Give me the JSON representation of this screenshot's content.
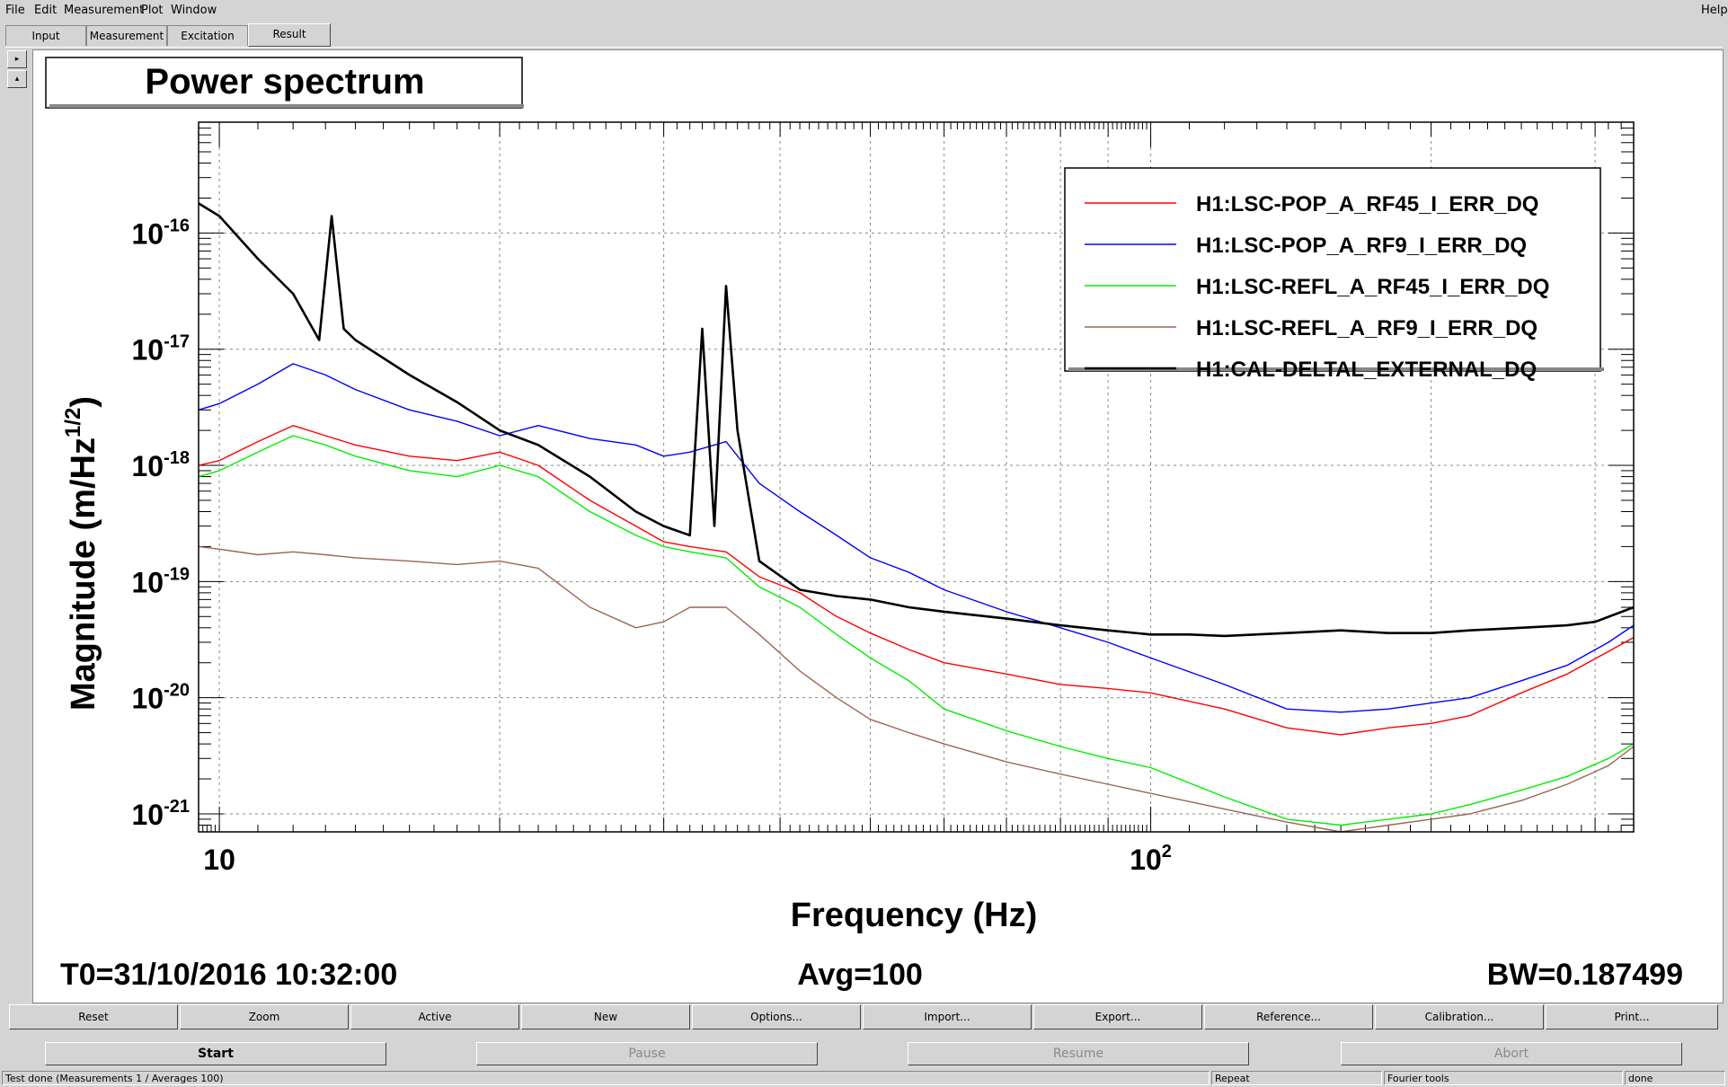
{
  "menubar": {
    "items": [
      {
        "label": "File"
      },
      {
        "label": "Edit"
      },
      {
        "label": "Measurement"
      },
      {
        "label": "Plot"
      },
      {
        "label": "Window"
      }
    ],
    "help": "Help"
  },
  "tabs": [
    {
      "label": "Input"
    },
    {
      "label": "Measurement"
    },
    {
      "label": "Excitation"
    },
    {
      "label": "Result",
      "active": true
    }
  ],
  "plot": {
    "title": "Power spectrum",
    "info_left": "T0=31/10/2016 10:32:00",
    "info_center": "Avg=100",
    "info_right": "BW=0.187499"
  },
  "chart_data": {
    "type": "line",
    "title": "Power spectrum",
    "xlabel": "Frequency (Hz)",
    "ylabel": "Magnitude (m/Hz^(1/2))",
    "xscale": "log",
    "yscale": "log",
    "xlim": [
      9.5,
      330
    ],
    "ylim": [
      7e-22,
      9e-16
    ],
    "x_ticks": [
      "10",
      "10^2"
    ],
    "y_ticks": [
      "10^-16",
      "10^-17",
      "10^-18",
      "10^-19",
      "10^-20",
      "10^-21"
    ],
    "grid": true,
    "legend_position": "top-right",
    "series": [
      {
        "name": "H1:LSC-POP_A_RF45_I_ERR_DQ",
        "color": "#ff0000",
        "points": [
          [
            9.5,
            1e-18
          ],
          [
            10,
            1.1e-18
          ],
          [
            11,
            1.6e-18
          ],
          [
            12,
            2.2e-18
          ],
          [
            13,
            1.8e-18
          ],
          [
            14,
            1.5e-18
          ],
          [
            16,
            1.2e-18
          ],
          [
            18,
            1.1e-18
          ],
          [
            20,
            1.3e-18
          ],
          [
            22,
            1e-18
          ],
          [
            25,
            5e-19
          ],
          [
            28,
            3e-19
          ],
          [
            30,
            2.2e-19
          ],
          [
            32,
            2e-19
          ],
          [
            35,
            1.8e-19
          ],
          [
            38,
            1.1e-19
          ],
          [
            42,
            8e-20
          ],
          [
            46,
            5e-20
          ],
          [
            50,
            3.6e-20
          ],
          [
            55,
            2.6e-20
          ],
          [
            60,
            2e-20
          ],
          [
            70,
            1.6e-20
          ],
          [
            80,
            1.3e-20
          ],
          [
            90,
            1.2e-20
          ],
          [
            100,
            1.1e-20
          ],
          [
            120,
            8e-21
          ],
          [
            140,
            5.5e-21
          ],
          [
            160,
            4.8e-21
          ],
          [
            180,
            5.5e-21
          ],
          [
            200,
            6e-21
          ],
          [
            220,
            7e-21
          ],
          [
            250,
            1.1e-20
          ],
          [
            280,
            1.6e-20
          ],
          [
            310,
            2.5e-20
          ],
          [
            330,
            3.3e-20
          ]
        ]
      },
      {
        "name": "H1:LSC-POP_A_RF9_I_ERR_DQ",
        "color": "#0000ff",
        "points": [
          [
            9.5,
            3e-18
          ],
          [
            10,
            3.4e-18
          ],
          [
            11,
            5e-18
          ],
          [
            12,
            7.5e-18
          ],
          [
            13,
            6e-18
          ],
          [
            14,
            4.5e-18
          ],
          [
            16,
            3e-18
          ],
          [
            18,
            2.4e-18
          ],
          [
            20,
            1.8e-18
          ],
          [
            22,
            2.2e-18
          ],
          [
            25,
            1.7e-18
          ],
          [
            28,
            1.5e-18
          ],
          [
            30,
            1.2e-18
          ],
          [
            32,
            1.3e-18
          ],
          [
            35,
            1.6e-18
          ],
          [
            38,
            7e-19
          ],
          [
            42,
            4e-19
          ],
          [
            46,
            2.5e-19
          ],
          [
            50,
            1.6e-19
          ],
          [
            55,
            1.2e-19
          ],
          [
            60,
            8.5e-20
          ],
          [
            70,
            5.5e-20
          ],
          [
            80,
            4e-20
          ],
          [
            90,
            3e-20
          ],
          [
            100,
            2.2e-20
          ],
          [
            120,
            1.3e-20
          ],
          [
            140,
            8e-21
          ],
          [
            160,
            7.5e-21
          ],
          [
            180,
            8e-21
          ],
          [
            200,
            9e-21
          ],
          [
            220,
            1e-20
          ],
          [
            250,
            1.4e-20
          ],
          [
            280,
            1.9e-20
          ],
          [
            310,
            3e-20
          ],
          [
            330,
            4.2e-20
          ]
        ]
      },
      {
        "name": "H1:LSC-REFL_A_RF45_I_ERR_DQ",
        "color": "#00ee00",
        "points": [
          [
            9.5,
            8e-19
          ],
          [
            10,
            9e-19
          ],
          [
            11,
            1.3e-18
          ],
          [
            12,
            1.8e-18
          ],
          [
            13,
            1.5e-18
          ],
          [
            14,
            1.2e-18
          ],
          [
            16,
            9e-19
          ],
          [
            18,
            8e-19
          ],
          [
            20,
            1e-18
          ],
          [
            22,
            8e-19
          ],
          [
            25,
            4e-19
          ],
          [
            28,
            2.5e-19
          ],
          [
            30,
            2e-19
          ],
          [
            32,
            1.8e-19
          ],
          [
            35,
            1.6e-19
          ],
          [
            38,
            9e-20
          ],
          [
            42,
            6e-20
          ],
          [
            46,
            3.5e-20
          ],
          [
            50,
            2.2e-20
          ],
          [
            55,
            1.4e-20
          ],
          [
            60,
            8e-21
          ],
          [
            70,
            5.2e-21
          ],
          [
            80,
            3.8e-21
          ],
          [
            90,
            3e-21
          ],
          [
            100,
            2.5e-21
          ],
          [
            120,
            1.4e-21
          ],
          [
            140,
            9e-22
          ],
          [
            160,
            8e-22
          ],
          [
            180,
            9e-22
          ],
          [
            200,
            1e-21
          ],
          [
            220,
            1.2e-21
          ],
          [
            250,
            1.6e-21
          ],
          [
            280,
            2.1e-21
          ],
          [
            310,
            3e-21
          ],
          [
            330,
            4e-21
          ]
        ]
      },
      {
        "name": "H1:LSC-REFL_A_RF9_I_ERR_DQ",
        "color": "#996655",
        "points": [
          [
            9.5,
            2e-19
          ],
          [
            10,
            1.9e-19
          ],
          [
            11,
            1.7e-19
          ],
          [
            12,
            1.8e-19
          ],
          [
            13,
            1.7e-19
          ],
          [
            14,
            1.6e-19
          ],
          [
            16,
            1.5e-19
          ],
          [
            18,
            1.4e-19
          ],
          [
            20,
            1.5e-19
          ],
          [
            22,
            1.3e-19
          ],
          [
            25,
            6e-20
          ],
          [
            28,
            4e-20
          ],
          [
            30,
            4.5e-20
          ],
          [
            32,
            6e-20
          ],
          [
            35,
            6e-20
          ],
          [
            38,
            3.5e-20
          ],
          [
            42,
            1.7e-20
          ],
          [
            46,
            1e-20
          ],
          [
            50,
            6.5e-21
          ],
          [
            55,
            5e-21
          ],
          [
            60,
            4e-21
          ],
          [
            70,
            2.8e-21
          ],
          [
            80,
            2.2e-21
          ],
          [
            90,
            1.8e-21
          ],
          [
            100,
            1.5e-21
          ],
          [
            120,
            1.1e-21
          ],
          [
            140,
            8.5e-22
          ],
          [
            160,
            7e-22
          ],
          [
            180,
            8e-22
          ],
          [
            200,
            9e-22
          ],
          [
            220,
            1e-21
          ],
          [
            250,
            1.3e-21
          ],
          [
            280,
            1.8e-21
          ],
          [
            310,
            2.6e-21
          ],
          [
            330,
            3.8e-21
          ]
        ]
      },
      {
        "name": "H1:CAL-DELTAL_EXTERNAL_DQ",
        "color": "#000000",
        "points": [
          [
            9.5,
            1.8e-16
          ],
          [
            10,
            1.4e-16
          ],
          [
            11,
            6e-17
          ],
          [
            12,
            3e-17
          ],
          [
            12.8,
            1.2e-17
          ],
          [
            13.2,
            1.4e-16
          ],
          [
            13.6,
            1.5e-17
          ],
          [
            14,
            1.2e-17
          ],
          [
            16,
            6e-18
          ],
          [
            18,
            3.5e-18
          ],
          [
            20,
            2e-18
          ],
          [
            22,
            1.5e-18
          ],
          [
            25,
            8e-19
          ],
          [
            28,
            4e-19
          ],
          [
            30,
            3e-19
          ],
          [
            32,
            2.5e-19
          ],
          [
            33,
            1.5e-17
          ],
          [
            34,
            3e-19
          ],
          [
            35,
            3.5e-17
          ],
          [
            36,
            2e-18
          ],
          [
            38,
            1.5e-19
          ],
          [
            42,
            8.5e-20
          ],
          [
            46,
            7.5e-20
          ],
          [
            50,
            7e-20
          ],
          [
            55,
            6e-20
          ],
          [
            60,
            5.5e-20
          ],
          [
            70,
            4.8e-20
          ],
          [
            80,
            4.2e-20
          ],
          [
            90,
            3.8e-20
          ],
          [
            100,
            3.5e-20
          ],
          [
            110,
            3.5e-20
          ],
          [
            120,
            3.4e-20
          ],
          [
            140,
            3.6e-20
          ],
          [
            160,
            3.8e-20
          ],
          [
            180,
            3.6e-20
          ],
          [
            200,
            3.6e-20
          ],
          [
            220,
            3.8e-20
          ],
          [
            250,
            4e-20
          ],
          [
            280,
            4.2e-20
          ],
          [
            300,
            4.5e-20
          ],
          [
            330,
            6e-20
          ]
        ]
      }
    ]
  },
  "buttons": [
    {
      "label": "Reset"
    },
    {
      "label": "Zoom"
    },
    {
      "label": "Active"
    },
    {
      "label": "New"
    },
    {
      "label": "Options..."
    },
    {
      "label": "Import..."
    },
    {
      "label": "Export..."
    },
    {
      "label": "Reference..."
    },
    {
      "label": "Calibration..."
    },
    {
      "label": "Print..."
    }
  ],
  "controls": {
    "start": "Start",
    "pause": "Pause",
    "resume": "Resume",
    "abort": "Abort"
  },
  "status": {
    "message": "Test done (Measurements 1 / Averages 100)",
    "repeat": "Repeat",
    "tool": "Fourier tools",
    "state": "done"
  }
}
